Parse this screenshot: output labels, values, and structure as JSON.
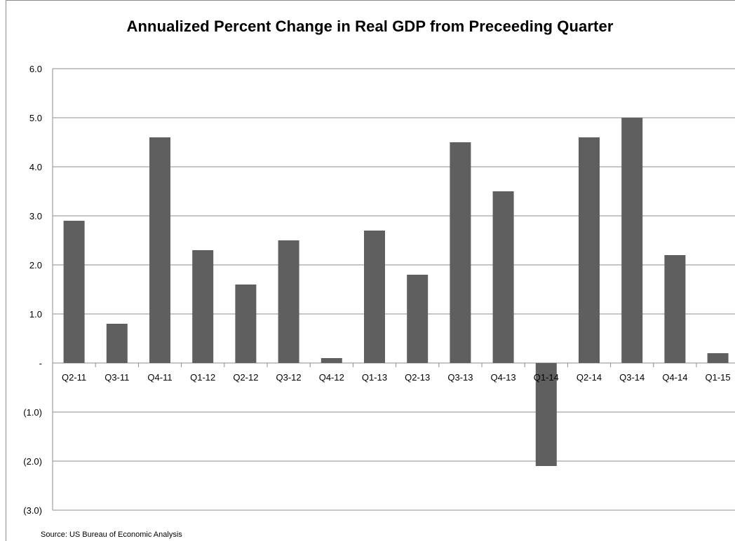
{
  "chart_data": {
    "type": "bar",
    "title": "Annualized Percent Change in Real GDP from Preceeding Quarter",
    "categories": [
      "Q2-11",
      "Q3-11",
      "Q4-11",
      "Q1-12",
      "Q2-12",
      "Q3-12",
      "Q4-12",
      "Q1-13",
      "Q2-13",
      "Q3-13",
      "Q4-13",
      "Q1-14",
      "Q2-14",
      "Q3-14",
      "Q4-14",
      "Q1-15"
    ],
    "values": [
      2.9,
      0.8,
      4.6,
      2.3,
      1.6,
      2.5,
      0.1,
      2.7,
      1.8,
      4.5,
      3.5,
      -2.1,
      4.6,
      5.0,
      2.2,
      0.2
    ],
    "ylim": [
      -3.0,
      6.0
    ],
    "yticks": [
      6.0,
      5.0,
      4.0,
      3.0,
      2.0,
      1.0,
      0,
      -1.0,
      -2.0,
      -3.0
    ],
    "ytick_labels": [
      "6.0",
      "5.0",
      "4.0",
      "3.0",
      "2.0",
      "1.0",
      "-",
      "(1.0)",
      "(2.0)",
      "(3.0)"
    ],
    "grid": true,
    "bar_color": "#5f5f5f",
    "gridline_color": "#8c8c8c",
    "xlabel": "",
    "ylabel": ""
  },
  "source": "Source: US Bureau of Economic Analysis"
}
